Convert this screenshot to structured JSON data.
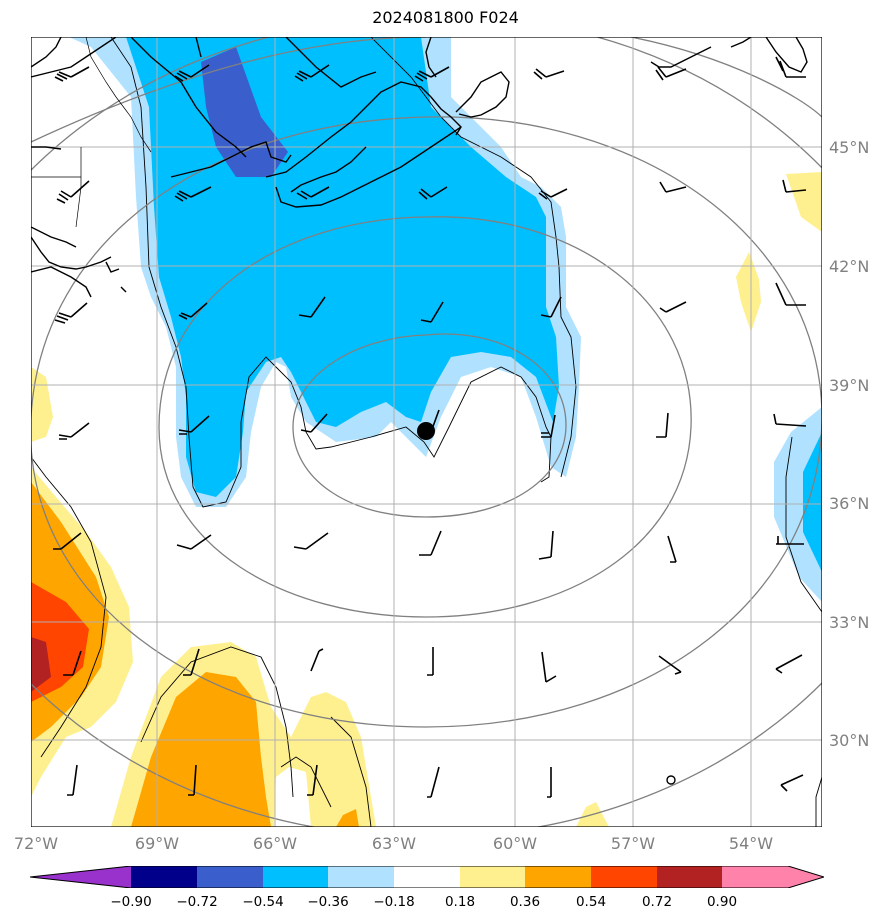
{
  "title": "2024081800 F024",
  "lat_ticks": [
    "45°N",
    "42°N",
    "39°N",
    "36°N",
    "33°N",
    "30°N"
  ],
  "lon_ticks": [
    "72°W",
    "69°W",
    "66°W",
    "63°W",
    "60°W",
    "57°W",
    "54°W"
  ],
  "colorbar": {
    "labels": [
      "−0.90",
      "−0.72",
      "−0.54",
      "−0.36",
      "−0.18",
      "0.18",
      "0.36",
      "0.54",
      "0.72",
      "0.90"
    ],
    "colors": [
      "#9932cc",
      "#00008b",
      "#3a5fcd",
      "#00bfff",
      "#b0e2ff",
      "#ffffff",
      "#fff08f",
      "#ffa500",
      "#ff4500",
      "#b22222",
      "#ff82ab"
    ]
  },
  "storm_center": {
    "lat": 37.8,
    "lon": -62.2
  }
}
